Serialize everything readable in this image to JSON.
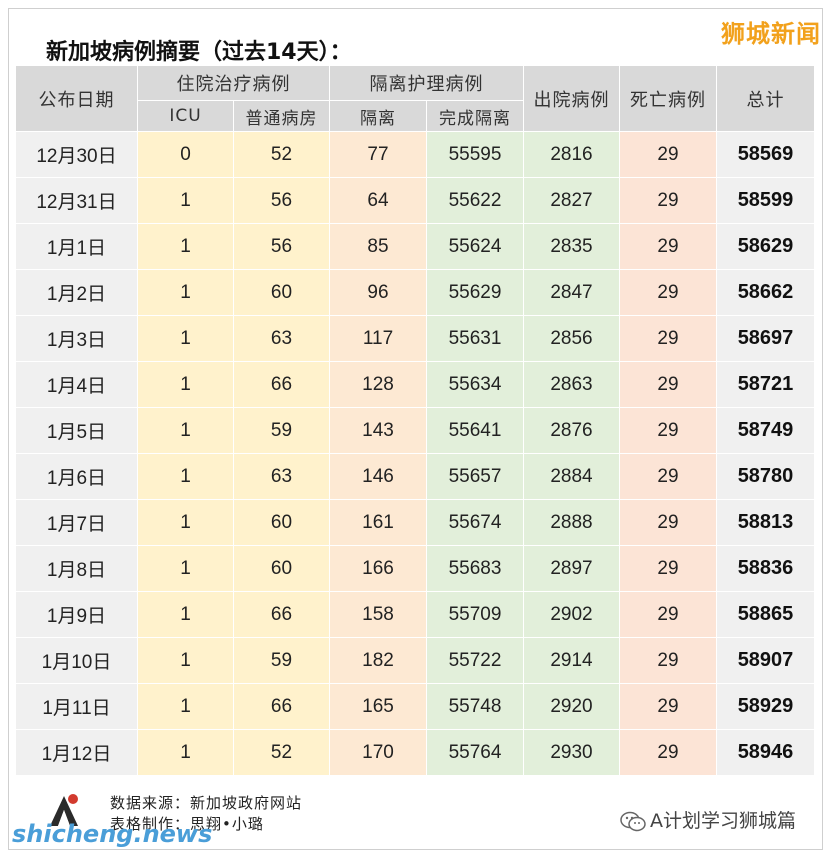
{
  "brand": "狮城新闻",
  "title": "新加坡病例摘要（过去14天）：",
  "headers": {
    "date": "公布日期",
    "hospital_group": "住院治疗病例",
    "icu": "ICU",
    "general_ward": "普通病房",
    "isolation_group": "隔离护理病例",
    "isolation": "隔离",
    "completed_isolation": "完成隔离",
    "discharged": "出院病例",
    "deaths": "死亡病例",
    "total": "总计"
  },
  "rows": [
    {
      "date": "12月30日",
      "icu": "0",
      "ward": "52",
      "iso": "77",
      "done": "55595",
      "disc": "2816",
      "death": "29",
      "total": "58569"
    },
    {
      "date": "12月31日",
      "icu": "1",
      "ward": "56",
      "iso": "64",
      "done": "55622",
      "disc": "2827",
      "death": "29",
      "total": "58599"
    },
    {
      "date": "1月1日",
      "icu": "1",
      "ward": "56",
      "iso": "85",
      "done": "55624",
      "disc": "2835",
      "death": "29",
      "total": "58629"
    },
    {
      "date": "1月2日",
      "icu": "1",
      "ward": "60",
      "iso": "96",
      "done": "55629",
      "disc": "2847",
      "death": "29",
      "total": "58662"
    },
    {
      "date": "1月3日",
      "icu": "1",
      "ward": "63",
      "iso": "117",
      "done": "55631",
      "disc": "2856",
      "death": "29",
      "total": "58697"
    },
    {
      "date": "1月4日",
      "icu": "1",
      "ward": "66",
      "iso": "128",
      "done": "55634",
      "disc": "2863",
      "death": "29",
      "total": "58721"
    },
    {
      "date": "1月5日",
      "icu": "1",
      "ward": "59",
      "iso": "143",
      "done": "55641",
      "disc": "2876",
      "death": "29",
      "total": "58749"
    },
    {
      "date": "1月6日",
      "icu": "1",
      "ward": "63",
      "iso": "146",
      "done": "55657",
      "disc": "2884",
      "death": "29",
      "total": "58780"
    },
    {
      "date": "1月7日",
      "icu": "1",
      "ward": "60",
      "iso": "161",
      "done": "55674",
      "disc": "2888",
      "death": "29",
      "total": "58813"
    },
    {
      "date": "1月8日",
      "icu": "1",
      "ward": "60",
      "iso": "166",
      "done": "55683",
      "disc": "2897",
      "death": "29",
      "total": "58836"
    },
    {
      "date": "1月9日",
      "icu": "1",
      "ward": "66",
      "iso": "158",
      "done": "55709",
      "disc": "2902",
      "death": "29",
      "total": "58865"
    },
    {
      "date": "1月10日",
      "icu": "1",
      "ward": "59",
      "iso": "182",
      "done": "55722",
      "disc": "2914",
      "death": "29",
      "total": "58907"
    },
    {
      "date": "1月11日",
      "icu": "1",
      "ward": "66",
      "iso": "165",
      "done": "55748",
      "disc": "2920",
      "death": "29",
      "total": "58929"
    },
    {
      "date": "1月12日",
      "icu": "1",
      "ward": "52",
      "iso": "170",
      "done": "55764",
      "disc": "2930",
      "death": "29",
      "total": "58946"
    }
  ],
  "footer": {
    "source": "数据来源：新加坡政府网站",
    "made_by": "表格制作：思翔•小璐",
    "site": "shicheng.news",
    "wechat": "A计划学习狮城篇",
    "wechat_icon": "wechat-icon"
  },
  "colors": {
    "header": "#d9d9d9",
    "hospital": "#fff2cc",
    "completed": "#e2efda",
    "deaths": "#fce4d6",
    "brand": "#f2a11c",
    "site": "#4a9ed8"
  }
}
